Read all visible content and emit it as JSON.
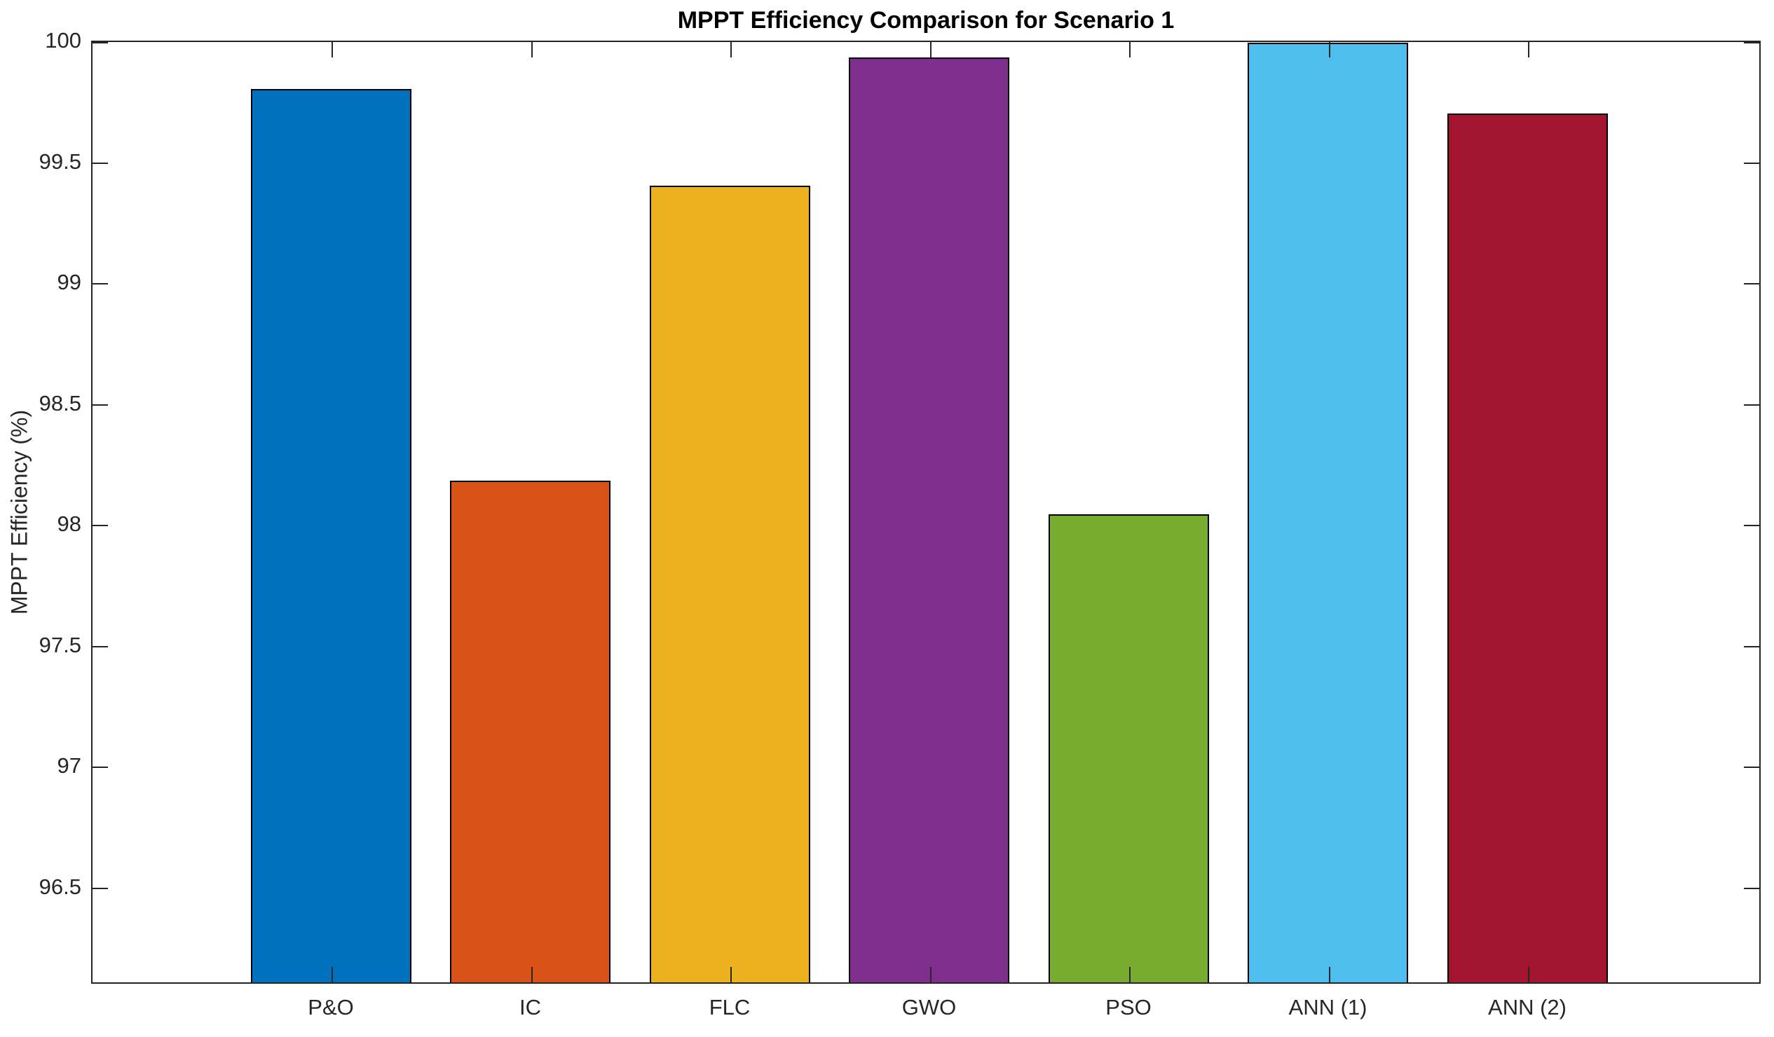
{
  "chart_data": {
    "type": "bar",
    "title": "MPPT Efficiency Comparison for Scenario 1",
    "xlabel": "",
    "ylabel": "MPPT Efficiency (%)",
    "categories": [
      "P&O",
      "IC",
      "FLC",
      "GWO",
      "PSO",
      "ANN (1)",
      "ANN (2)"
    ],
    "values": [
      99.8,
      98.18,
      99.4,
      99.93,
      98.04,
      99.99,
      99.7
    ],
    "bar_colors": [
      "#0072BD",
      "#D95319",
      "#EDB120",
      "#7E2F8E",
      "#77AC30",
      "#4DBEEE",
      "#A2142F"
    ],
    "bar_edge_color": "#000000",
    "ylim": [
      96.1,
      100
    ],
    "yticks": [
      96.5,
      97,
      97.5,
      98,
      98.5,
      99,
      99.5,
      100
    ],
    "ytick_labels": [
      "96.5",
      "97",
      "97.5",
      "98",
      "98.5",
      "99",
      "99.5",
      "100"
    ],
    "grid": false,
    "legend": null,
    "axis_color": "#262626",
    "background_color": "#ffffff",
    "box": true,
    "tick_direction": "in"
  }
}
